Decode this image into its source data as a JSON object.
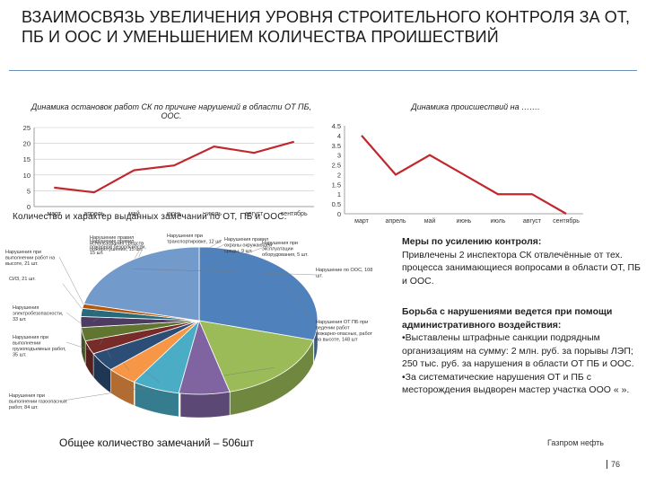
{
  "title": "ВЗАИМОСВЯЗЬ УВЕЛИЧЕНИЯ УРОВНЯ СТРОИТЕЛЬНОГО КОНТРОЛЯ ЗА ОТ, ПБ И ООС И УМЕНЬШЕНИЕМ КОЛИЧЕСТВА ПРОИШЕСТВИЙ",
  "colors": {
    "line": "#c0282d",
    "line2": "#c0282d",
    "rule": "#6b8fb5"
  },
  "chart_data": [
    {
      "type": "line",
      "title": "Динамика остановок работ СК по причине нарушений в области ОТ ПБ, ООС.",
      "categories": [
        "март",
        "апрель",
        "май",
        "июнь",
        "июль",
        "август",
        "сентябрь"
      ],
      "values": [
        6,
        4.5,
        11.5,
        13,
        19,
        17,
        20.5
      ],
      "yticks": [
        "0",
        "5",
        "10",
        "15",
        "20",
        "25"
      ],
      "ylim": [
        0,
        25
      ],
      "grid": true
    },
    {
      "type": "line",
      "title": "Динамика происшествий на …….",
      "categories": [
        "март",
        "апрель",
        "май",
        "июнь",
        "июль",
        "август",
        "сентябрь"
      ],
      "values": [
        4,
        2,
        3,
        2,
        1,
        1,
        0
      ],
      "yticks": [
        "0",
        "0.5",
        "1",
        "1.5",
        "2",
        "2.5",
        "3",
        "3.5",
        "4",
        "4.5"
      ],
      "ylim": [
        0,
        4.5
      ],
      "grid": false
    },
    {
      "type": "pie",
      "title": "Количество и характер выданных замечаний по ОТ, ПБ и ООС.",
      "slices": [
        {
          "label": "Нарушения ОТ ПБ при ведении работ пожарно-опасных, работ на высоте, 148 шт",
          "value": 148,
          "color": "#4f81bd"
        },
        {
          "label": "Нарушения при выполнении газоопасных работ, 84 шт.",
          "value": 84,
          "color": "#9bbb59"
        },
        {
          "label": "Нарушения при выполнении грузоподъемных работ, 35 шт.",
          "value": 35,
          "color": "#8064a2"
        },
        {
          "label": "Нарушения электробезопасности, 33 шт.",
          "value": 33,
          "color": "#4bacc6"
        },
        {
          "label": "СИЗ, 21 шт.",
          "value": 21,
          "color": "#f79646"
        },
        {
          "label": "Нарушения при выполнении работ на высоте, 21 шт.",
          "value": 21,
          "color": "#2c4d75"
        },
        {
          "label": "Нарушение правил пожарной безопасности, 15 шт.",
          "value": 15,
          "color": "#772c2a"
        },
        {
          "label": "Нарушение правил использования средств пожаротушения, 15 шт.",
          "value": 15,
          "color": "#5f7530"
        },
        {
          "label": "Нарушения при транспортировке, 12 шт",
          "value": 12,
          "color": "#4d3b62"
        },
        {
          "label": "Нарушения правил охраны окружающей среды, 9 шт.",
          "value": 9,
          "color": "#276a7c"
        },
        {
          "label": "Нарушения при эксплуатации оборудования, 5 шт.",
          "value": 5,
          "color": "#b65708"
        },
        {
          "label": "Нарушение по ООС, 108 шт.",
          "value": 108,
          "color": "#729aca"
        }
      ]
    }
  ],
  "pie_caption": "Количество и характер выданных замечаний по ОТ, ПБ и ООС.",
  "total": "Общее количество замечаний – 506шт",
  "measures": {
    "heading": "Меры по усилению контроля:",
    "text": "Привлечены 2 инспектора СК отвлечённые от тех. процесса занимающиеся вопросами в области ОТ, ПБ и ООС."
  },
  "fight": {
    "heading": "Борьба с нарушениями ведется при помощи административного воздействия:",
    "items": [
      "•Выставлены штрафные санкции подрядным организациям на сумму: 2 млн. руб. за порывы ЛЭП; 250 тыс. руб. за нарушения в области ОТ ПБ и ООС.",
      "•За систематические нарушения ОТ и ПБ с месторождения выдворен мастер участка ООО «                 »."
    ]
  },
  "brand": "Газпром нефть",
  "page_number": "76"
}
